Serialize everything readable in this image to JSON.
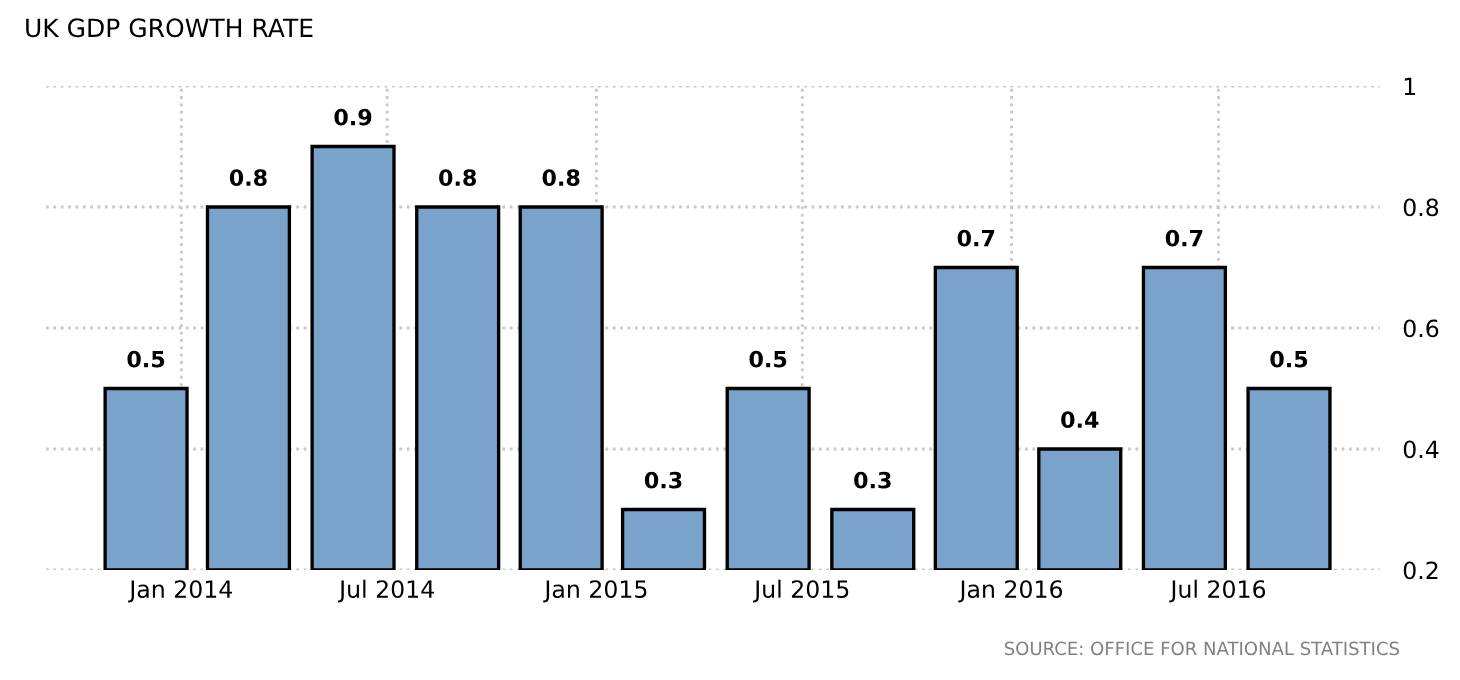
{
  "chart_data": {
    "type": "bar",
    "title": "UK GDP GROWTH RATE",
    "x": [
      "2013-12",
      "2014-03",
      "2014-06",
      "2014-09",
      "2014-12",
      "2015-03",
      "2015-06",
      "2015-09",
      "2015-12",
      "2016-03",
      "2016-06",
      "2016-09"
    ],
    "values": [
      0.5,
      0.8,
      0.9,
      0.8,
      0.8,
      0.3,
      0.5,
      0.3,
      0.7,
      0.4,
      0.7,
      0.5
    ],
    "color": "#7aa3cb",
    "data_labels": true,
    "xlim": [
      "2013-09-04",
      "2016-11-20"
    ],
    "xticks": [
      {
        "value": "2014-01",
        "label": "Jan 2014"
      },
      {
        "value": "2014-07",
        "label": "Jul 2014"
      },
      {
        "value": "2015-01",
        "label": "Jan 2015"
      },
      {
        "value": "2015-07",
        "label": "Jul 2015"
      },
      {
        "value": "2016-01",
        "label": "Jan 2016"
      },
      {
        "value": "2016-07",
        "label": "Jul 2016"
      }
    ],
    "ylim": [
      0.2,
      1
    ],
    "yticks": [
      0.2,
      0.4,
      0.6,
      0.8,
      1
    ],
    "grid": true,
    "annotations": [
      "SOURCE: OFFICE FOR NATIONAL STATISTICS"
    ]
  }
}
